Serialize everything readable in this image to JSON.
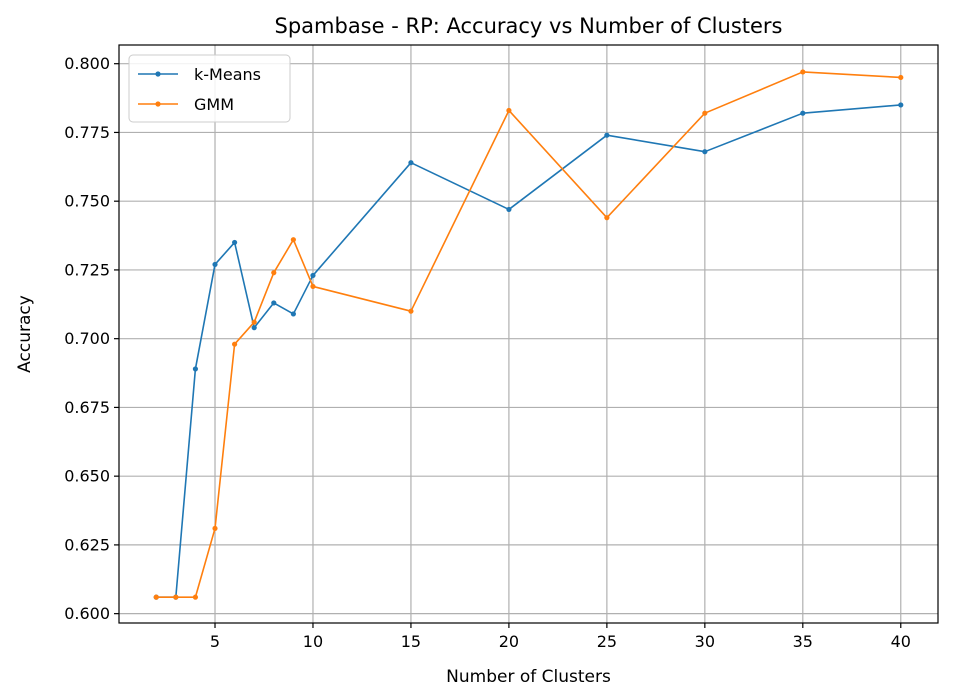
{
  "chart_data": {
    "type": "line",
    "title": "Spambase - RP: Accuracy vs Number of Clusters",
    "xlabel": "Number of Clusters",
    "ylabel": "Accuracy",
    "xlim": [
      0.1,
      41.9
    ],
    "ylim": [
      0.5966,
      0.8068
    ],
    "xticks": [
      5,
      10,
      15,
      20,
      25,
      30,
      35,
      40
    ],
    "yticks": [
      0.6,
      0.625,
      0.65,
      0.675,
      0.7,
      0.725,
      0.75,
      0.775,
      0.8
    ],
    "grid": true,
    "legend_position": "upper-left",
    "series": [
      {
        "name": "k-Means",
        "color": "#1f77b4",
        "x": [
          2,
          3,
          4,
          5,
          6,
          7,
          8,
          9,
          10,
          15,
          20,
          25,
          30,
          35,
          40
        ],
        "y": [
          0.606,
          0.606,
          0.689,
          0.727,
          0.735,
          0.704,
          0.713,
          0.709,
          0.723,
          0.764,
          0.747,
          0.774,
          0.768,
          0.782,
          0.785
        ]
      },
      {
        "name": "GMM",
        "color": "#ff7f0e",
        "x": [
          2,
          3,
          4,
          5,
          6,
          7,
          8,
          9,
          10,
          15,
          20,
          25,
          30,
          35,
          40
        ],
        "y": [
          0.606,
          0.606,
          0.606,
          0.631,
          0.698,
          0.706,
          0.724,
          0.736,
          0.719,
          0.71,
          0.783,
          0.744,
          0.782,
          0.797,
          0.795
        ]
      }
    ]
  }
}
